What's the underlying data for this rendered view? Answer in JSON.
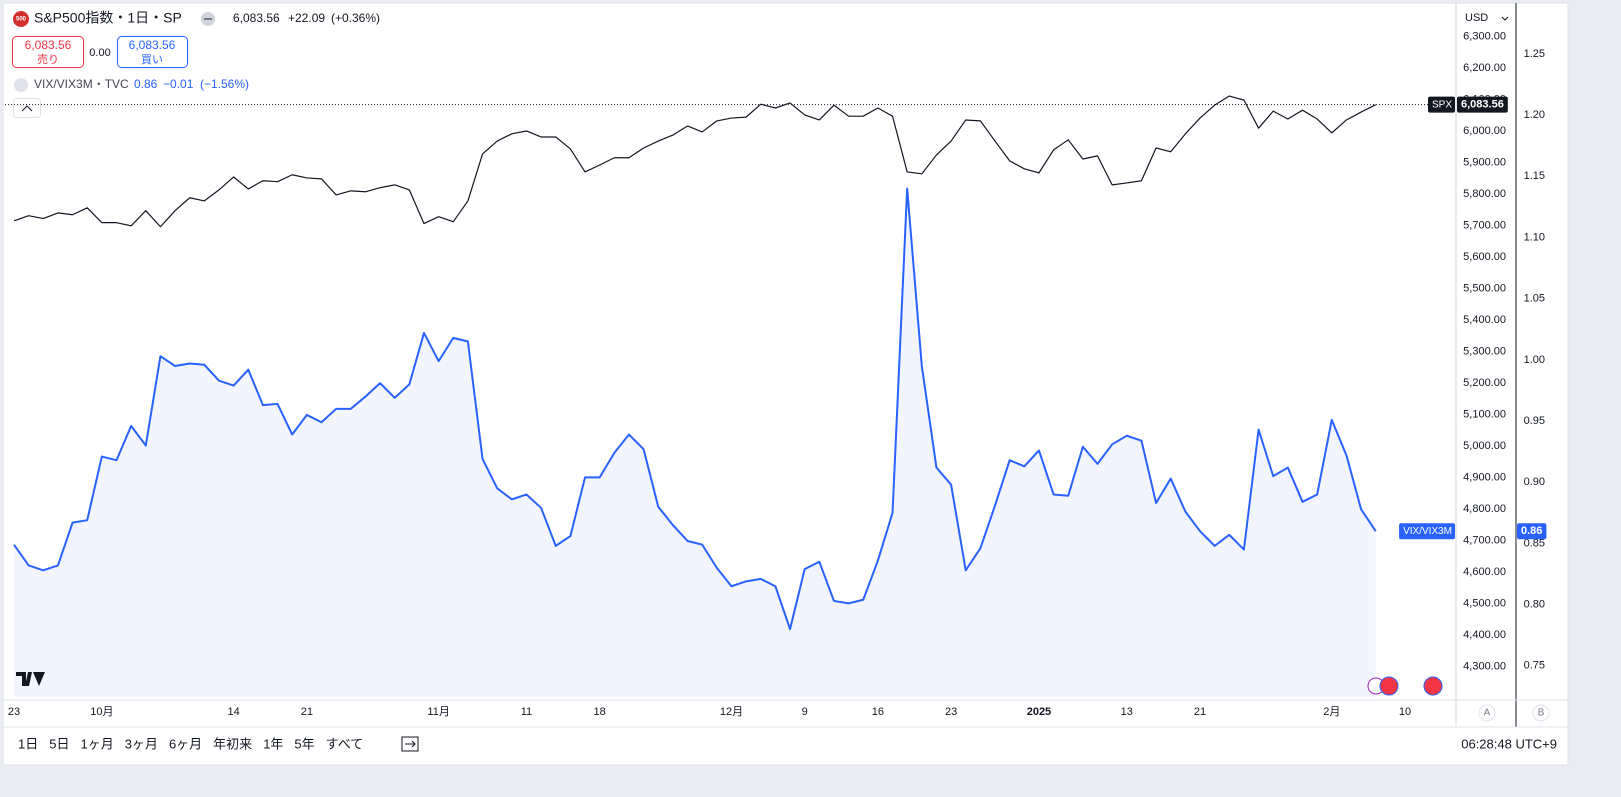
{
  "header": {
    "logo": "500",
    "symbol": "S&P500指数・1日・SP",
    "price": "6,083.56",
    "change": "+22.09",
    "change_pct": "(+0.36%)",
    "sell_price": "6,083.56",
    "sell_label": "売り",
    "spread": "0.00",
    "buy_price": "6,083.56",
    "buy_label": "買い",
    "indicator": "VIX/VIX3M・TVC",
    "indicator_value": "0.86",
    "indicator_change": "−0.01",
    "indicator_change_pct": "(−1.56%)"
  },
  "currency": "USD",
  "scale_buttons": [
    "A",
    "B"
  ],
  "ranges": [
    "1日",
    "5日",
    "1ヶ月",
    "3ヶ月",
    "6ヶ月",
    "年初来",
    "1年",
    "5年",
    "すべて"
  ],
  "clock": "06:28:48 UTC+9",
  "chart_data": {
    "type": "line",
    "categories": [
      "23",
      null,
      null,
      null,
      null,
      null,
      "10月",
      null,
      null,
      null,
      null,
      null,
      null,
      null,
      null,
      "14",
      null,
      null,
      null,
      null,
      "21",
      null,
      null,
      null,
      null,
      null,
      null,
      null,
      null,
      "11月",
      null,
      null,
      null,
      null,
      null,
      "11",
      null,
      null,
      null,
      null,
      "18",
      null,
      null,
      null,
      null,
      null,
      null,
      null,
      null,
      "12月",
      null,
      null,
      null,
      null,
      "9",
      null,
      null,
      null,
      null,
      "16",
      null,
      null,
      null,
      null,
      "23",
      null,
      null,
      null,
      null,
      null,
      "2025",
      null,
      null,
      null,
      null,
      null,
      "13",
      null,
      null,
      null,
      null,
      "21",
      null,
      null,
      null,
      null,
      null,
      null,
      null,
      null,
      "2月",
      null,
      null,
      null,
      null,
      "10"
    ],
    "series": [
      {
        "name": "SPX",
        "color": "#131722",
        "last_label": "6,083.56",
        "values": [
          5715,
          5731,
          5722,
          5740,
          5734,
          5756,
          5709,
          5709,
          5699,
          5747,
          5696,
          5747,
          5788,
          5778,
          5813,
          5854,
          5816,
          5842,
          5839,
          5861,
          5851,
          5848,
          5797,
          5810,
          5807,
          5820,
          5829,
          5813,
          5706,
          5728,
          5712,
          5778,
          5927,
          5968,
          5991,
          6000,
          5981,
          5981,
          5943,
          5870,
          5892,
          5915,
          5915,
          5946,
          5968,
          5987,
          6016,
          5997,
          6032,
          6041,
          6044,
          6085,
          6073,
          6089,
          6051,
          6035,
          6082,
          6047,
          6047,
          6073,
          6047,
          5870,
          5864,
          5924,
          5968,
          6035,
          6032,
          5968,
          5905,
          5880,
          5867,
          5940,
          5972,
          5911,
          5921,
          5829,
          5835,
          5842,
          5946,
          5934,
          5991,
          6041,
          6082,
          6111,
          6098,
          6009,
          6063,
          6038,
          6066,
          6038,
          5994,
          6035,
          6060,
          6083.56,
          null,
          null
        ]
      },
      {
        "name": "VIX/VIX3M",
        "color": "#2962ff",
        "fill": "#f2f5fe",
        "axis": "y2",
        "last_label": "0.86",
        "values": [
          0.849,
          0.832,
          0.828,
          0.832,
          0.867,
          0.869,
          0.921,
          0.918,
          0.946,
          0.93,
          1.003,
          0.995,
          0.997,
          0.996,
          0.983,
          0.979,
          0.992,
          0.963,
          0.964,
          0.939,
          0.955,
          0.949,
          0.96,
          0.96,
          0.97,
          0.981,
          0.969,
          0.98,
          1.022,
          0.999,
          1.018,
          1.015,
          0.919,
          0.895,
          0.886,
          0.89,
          0.879,
          0.848,
          0.856,
          0.904,
          0.904,
          0.924,
          0.939,
          0.927,
          0.88,
          0.865,
          0.852,
          0.849,
          0.83,
          0.815,
          0.819,
          0.821,
          0.815,
          0.78,
          0.829,
          0.835,
          0.803,
          0.801,
          0.804,
          0.836,
          0.875,
          1.14,
          0.995,
          0.912,
          0.898,
          0.828,
          0.846,
          0.881,
          0.918,
          0.913,
          0.926,
          0.89,
          0.889,
          0.929,
          0.915,
          0.931,
          0.938,
          0.934,
          0.883,
          0.903,
          0.876,
          0.86,
          0.848,
          0.857,
          0.845,
          0.943,
          0.905,
          0.912,
          0.884,
          0.89,
          0.951,
          0.922,
          0.878,
          0.86,
          null,
          null
        ]
      }
    ],
    "ylim": [
      4203,
      6400
    ],
    "yticks": [
      {
        "value": 4300,
        "label": "4,300.00"
      },
      {
        "value": 4400,
        "label": "4,400.00"
      },
      {
        "value": 4500,
        "label": "4,500.00"
      },
      {
        "value": 4600,
        "label": "4,600.00"
      },
      {
        "value": 4700,
        "label": "4,700.00"
      },
      {
        "value": 4800,
        "label": "4,800.00"
      },
      {
        "value": 4900,
        "label": "4,900.00"
      },
      {
        "value": 5000,
        "label": "5,000.00"
      },
      {
        "value": 5100,
        "label": "5,100.00"
      },
      {
        "value": 5200,
        "label": "5,200.00"
      },
      {
        "value": 5300,
        "label": "5,300.00"
      },
      {
        "value": 5400,
        "label": "5,400.00"
      },
      {
        "value": 5500,
        "label": "5,500.00"
      },
      {
        "value": 5600,
        "label": "5,600.00"
      },
      {
        "value": 5700,
        "label": "5,700.00"
      },
      {
        "value": 5800,
        "label": "5,800.00"
      },
      {
        "value": 5900,
        "label": "5,900.00"
      },
      {
        "value": 6000,
        "label": "6,000.00"
      },
      {
        "value": 6100,
        "label": "6,100.00"
      },
      {
        "value": 6200,
        "label": "6,200.00"
      },
      {
        "value": 6300,
        "label": "6,300.00"
      }
    ],
    "y2lim": [
      0.7245,
      1.29
    ],
    "y2ticks": [
      0.75,
      {
        "value": 0.8,
        "label": "0.80"
      },
      0.85,
      {
        "value": 0.9,
        "label": "0.90"
      },
      0.95,
      {
        "value": 1,
        "label": "1.00"
      },
      1.05,
      {
        "value": 1.1,
        "label": "1.10"
      },
      1.15,
      {
        "value": 1.2,
        "label": "1.20"
      },
      1.25
    ],
    "grid": false
  }
}
